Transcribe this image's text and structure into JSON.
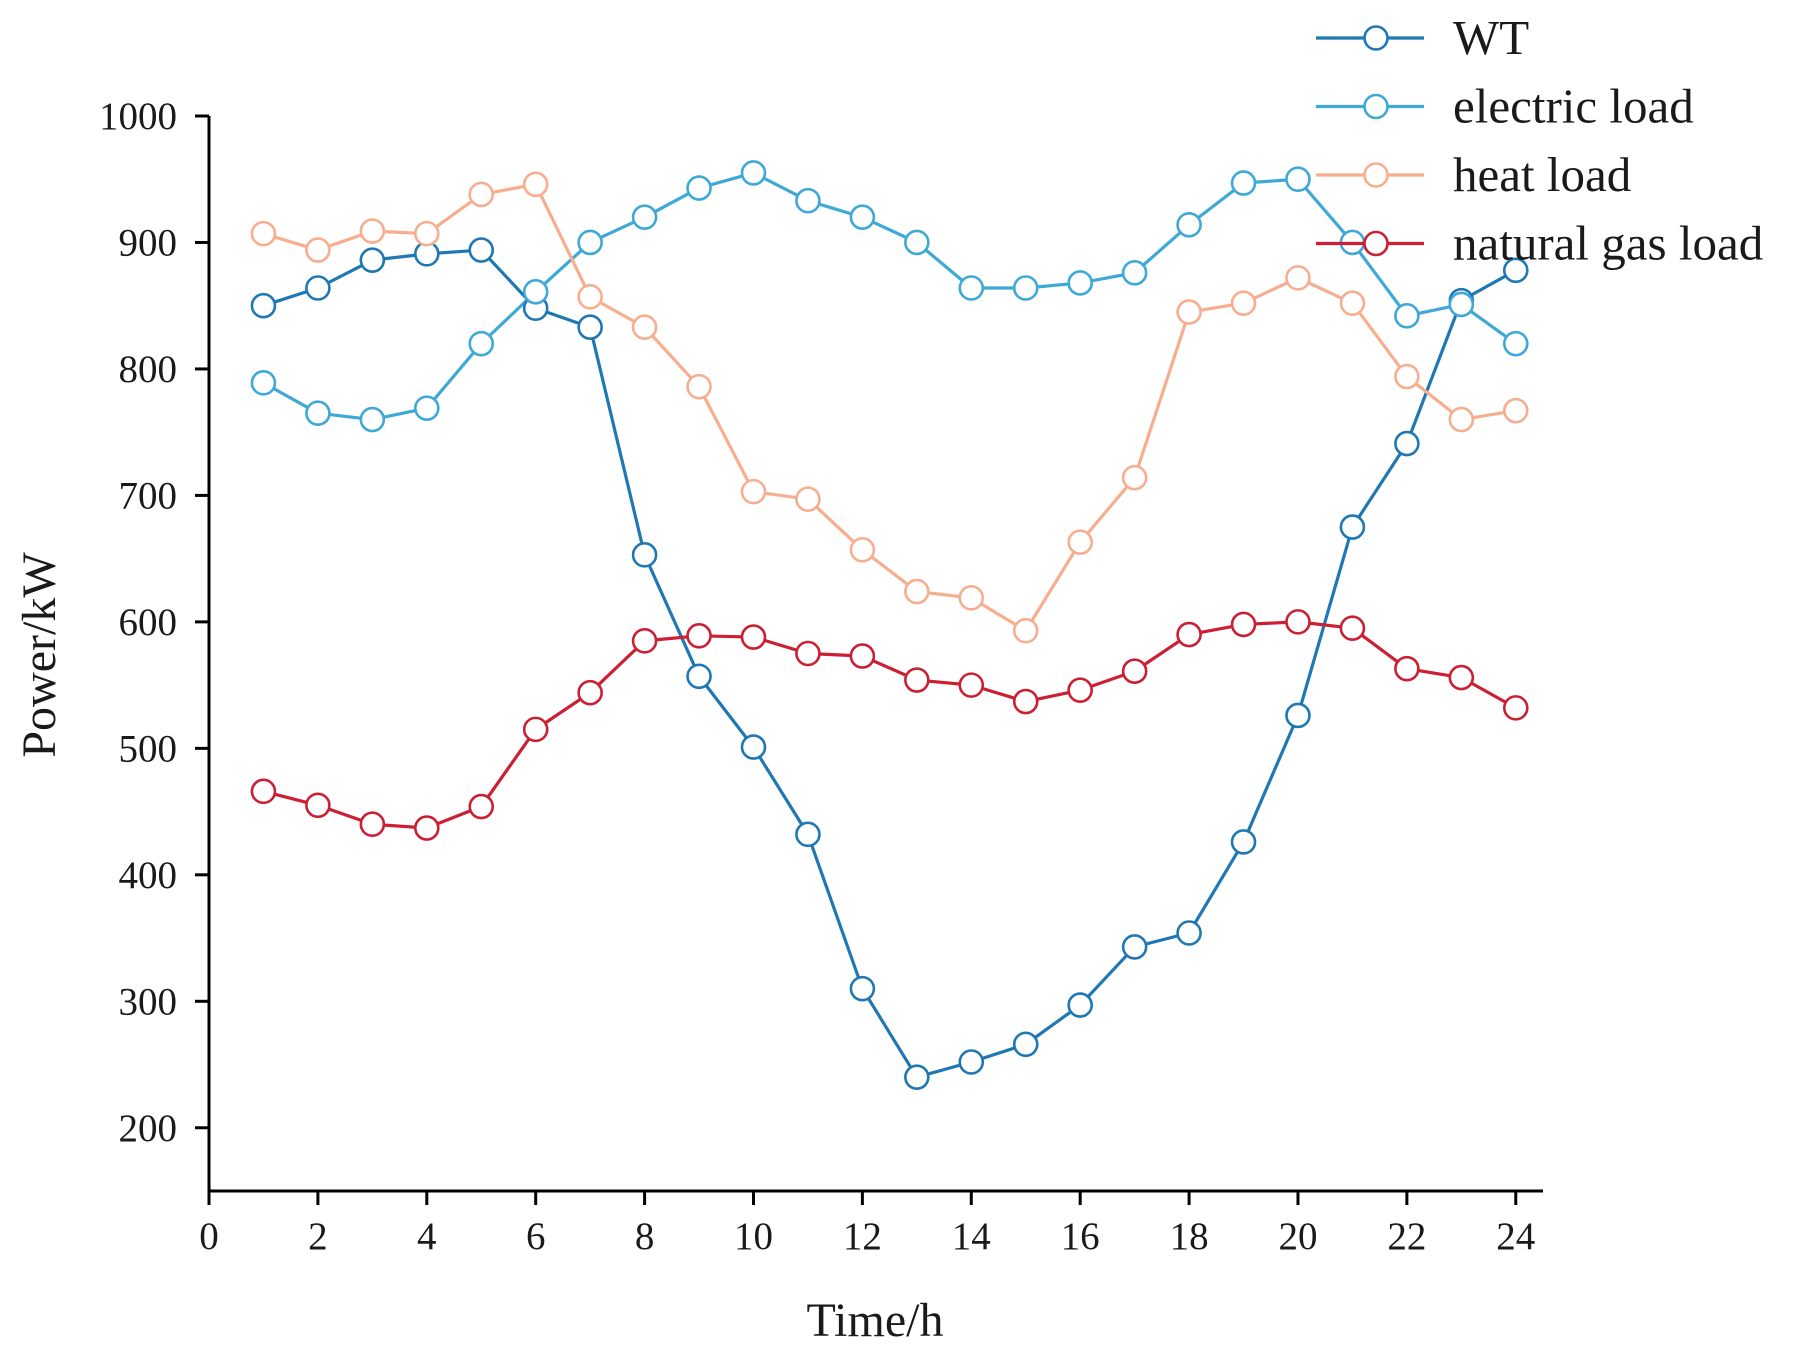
{
  "chart_data": {
    "type": "line",
    "title": "",
    "xlabel": "Time/h",
    "ylabel": "Power/kW",
    "xlim": [
      0,
      24.5
    ],
    "ylim": [
      150,
      1000
    ],
    "xticks": [
      0,
      2,
      4,
      6,
      8,
      10,
      12,
      14,
      16,
      18,
      20,
      22,
      24
    ],
    "yticks": [
      200,
      300,
      400,
      500,
      600,
      700,
      800,
      900,
      1000
    ],
    "grid": false,
    "legend_position": "top-right",
    "x": [
      1,
      2,
      3,
      4,
      5,
      6,
      7,
      8,
      9,
      10,
      11,
      12,
      13,
      14,
      15,
      16,
      17,
      18,
      19,
      20,
      21,
      22,
      23,
      24
    ],
    "series": [
      {
        "name": "WT",
        "color": "#1f77b4",
        "values": [
          850,
          864,
          886,
          891,
          894,
          848,
          833,
          653,
          557,
          501,
          432,
          310,
          240,
          252,
          266,
          297,
          343,
          354,
          426,
          526,
          675,
          741,
          854,
          878
        ]
      },
      {
        "name": "electric load",
        "color": "#3ea8d6",
        "values": [
          789,
          765,
          760,
          769,
          820,
          861,
          900,
          920,
          943,
          955,
          933,
          920,
          900,
          864,
          864,
          868,
          876,
          914,
          947,
          950,
          900,
          842,
          851,
          820
        ]
      },
      {
        "name": "heat load",
        "color": "#f7ae8f",
        "values": [
          907,
          894,
          909,
          907,
          938,
          946,
          857,
          833,
          786,
          703,
          697,
          657,
          624,
          619,
          593,
          663,
          714,
          845,
          852,
          872,
          852,
          794,
          760,
          767
        ]
      },
      {
        "name": "natural gas load",
        "color": "#cc1f33",
        "values": [
          466,
          455,
          440,
          437,
          454,
          515,
          544,
          585,
          589,
          588,
          575,
          573,
          554,
          550,
          537,
          546,
          561,
          590,
          598,
          600,
          595,
          563,
          556,
          532
        ]
      }
    ]
  }
}
